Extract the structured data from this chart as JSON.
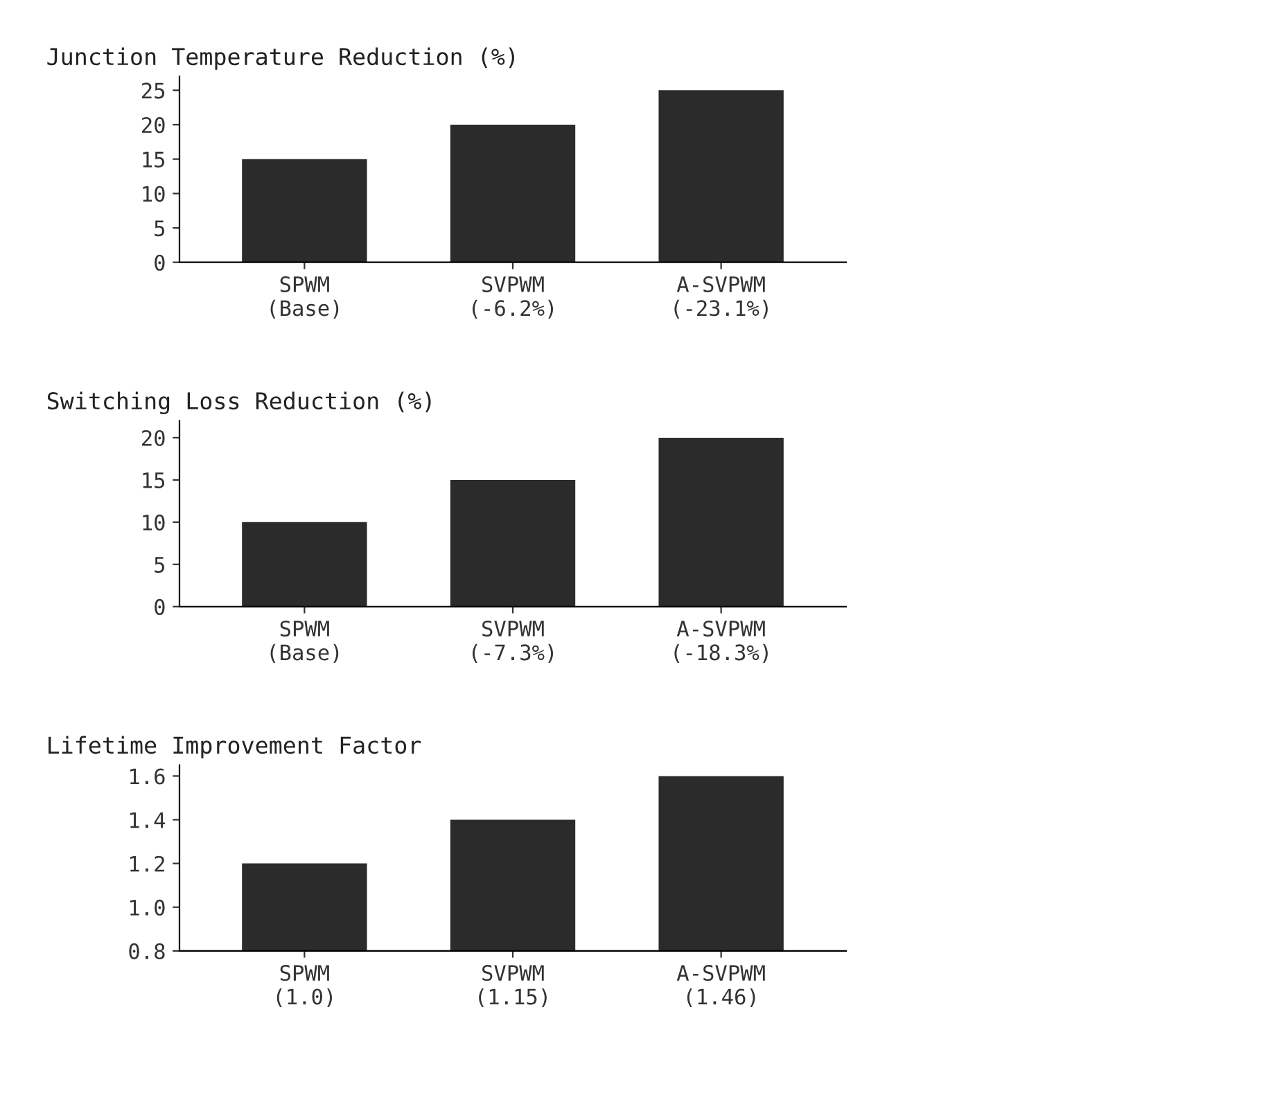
{
  "chart_data": [
    {
      "type": "bar",
      "title": "Junction Temperature Reduction (%)",
      "categories": [
        "SPWM\n(Base)",
        "SVPWM\n(-6.2%)",
        "A-SVPWM\n(-23.1%)"
      ],
      "values": [
        15,
        20,
        25
      ],
      "color": "#2b2b2b",
      "ylim": [
        0,
        27
      ],
      "yticks": [
        0,
        5,
        10,
        15,
        20,
        25
      ],
      "grid": false
    },
    {
      "type": "bar",
      "title": "Switching Loss Reduction (%)",
      "categories": [
        "SPWM\n(Base)",
        "SVPWM\n(-7.3%)",
        "A-SVPWM\n(-18.3%)"
      ],
      "values": [
        10,
        15,
        20
      ],
      "color": "#2b2b2b",
      "ylim": [
        0,
        22
      ],
      "yticks": [
        0,
        5,
        10,
        15,
        20
      ],
      "grid": false
    },
    {
      "type": "bar",
      "title": "Lifetime Improvement Factor",
      "categories": [
        "SPWM\n(1.0)",
        "SVPWM\n(1.15)",
        "A-SVPWM\n(1.46)"
      ],
      "values": [
        1.2,
        1.4,
        1.6
      ],
      "color": "#2b2b2b",
      "ylim": [
        0.8,
        1.65
      ],
      "yticks": [
        {
          "value": 0.8,
          "label": "0.8"
        },
        {
          "value": 1.0,
          "label": "1.0"
        },
        {
          "value": 1.2,
          "label": "1.2"
        },
        {
          "value": 1.4,
          "label": "1.4"
        },
        {
          "value": 1.6,
          "label": "1.6"
        }
      ],
      "grid": false
    }
  ]
}
